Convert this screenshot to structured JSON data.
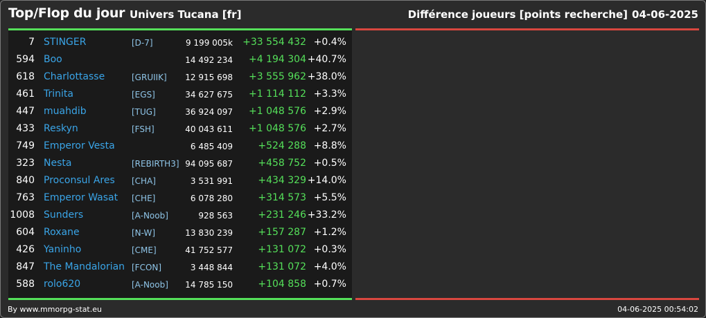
{
  "header": {
    "title": "Top/Flop du jour",
    "server": "Univers Tucana [fr]",
    "metric": "Différence joueurs [points recherche]",
    "date": "04-06-2025"
  },
  "colors": {
    "positive": "#55e05a",
    "negative": "#d9473f",
    "name": "#3aa5e8",
    "alliance": "#8fc5e8"
  },
  "rows": [
    {
      "rank": "7",
      "name": "STINGER",
      "tag": "[D-7]",
      "points": "9 199 005k",
      "diff": "+33 554 432",
      "pct": "+0.4%"
    },
    {
      "rank": "594",
      "name": "Boo",
      "tag": "",
      "points": "14 492 234",
      "diff": "+4 194 304",
      "pct": "+40.7%"
    },
    {
      "rank": "618",
      "name": "Charlottasse",
      "tag": "[GRUIIK]",
      "points": "12 915 698",
      "diff": "+3 555 962",
      "pct": "+38.0%"
    },
    {
      "rank": "461",
      "name": "Trinita",
      "tag": "[EGS]",
      "points": "34 627 675",
      "diff": "+1 114 112",
      "pct": "+3.3%"
    },
    {
      "rank": "447",
      "name": "muahdib",
      "tag": "[TUG]",
      "points": "36 924 097",
      "diff": "+1 048 576",
      "pct": "+2.9%"
    },
    {
      "rank": "433",
      "name": "Reskyn",
      "tag": "[FSH]",
      "points": "40 043 611",
      "diff": "+1 048 576",
      "pct": "+2.7%"
    },
    {
      "rank": "749",
      "name": "Emperor Vesta",
      "tag": "",
      "points": "6 485 409",
      "diff": "+524 288",
      "pct": "+8.8%"
    },
    {
      "rank": "323",
      "name": "Nesta",
      "tag": "[REBIRTH3]",
      "points": "94 095 687",
      "diff": "+458 752",
      "pct": "+0.5%"
    },
    {
      "rank": "840",
      "name": "Proconsul Ares",
      "tag": "[CHA]",
      "points": "3 531 991",
      "diff": "+434 329",
      "pct": "+14.0%"
    },
    {
      "rank": "763",
      "name": "Emperor Wasat",
      "tag": "[CHE]",
      "points": "6 078 280",
      "diff": "+314 573",
      "pct": "+5.5%"
    },
    {
      "rank": "1008",
      "name": "Sunders",
      "tag": "[A-Noob]",
      "points": "928 563",
      "diff": "+231 246",
      "pct": "+33.2%"
    },
    {
      "rank": "604",
      "name": "Roxane",
      "tag": "[N-W]",
      "points": "13 830 239",
      "diff": "+157 287",
      "pct": "+1.2%"
    },
    {
      "rank": "426",
      "name": "Yaninho",
      "tag": "[CME]",
      "points": "41 752 577",
      "diff": "+131 072",
      "pct": "+0.3%"
    },
    {
      "rank": "847",
      "name": "The Mandalorian",
      "tag": "[FCON]",
      "points": "3 448 844",
      "diff": "+131 072",
      "pct": "+4.0%"
    },
    {
      "rank": "588",
      "name": "rolo620",
      "tag": "[A-Noob]",
      "points": "14 785 150",
      "diff": "+104 858",
      "pct": "+0.7%"
    }
  ],
  "footer": {
    "credit": "By www.mmorpg-stat.eu",
    "timestamp": "04-06-2025 00:54:02"
  }
}
